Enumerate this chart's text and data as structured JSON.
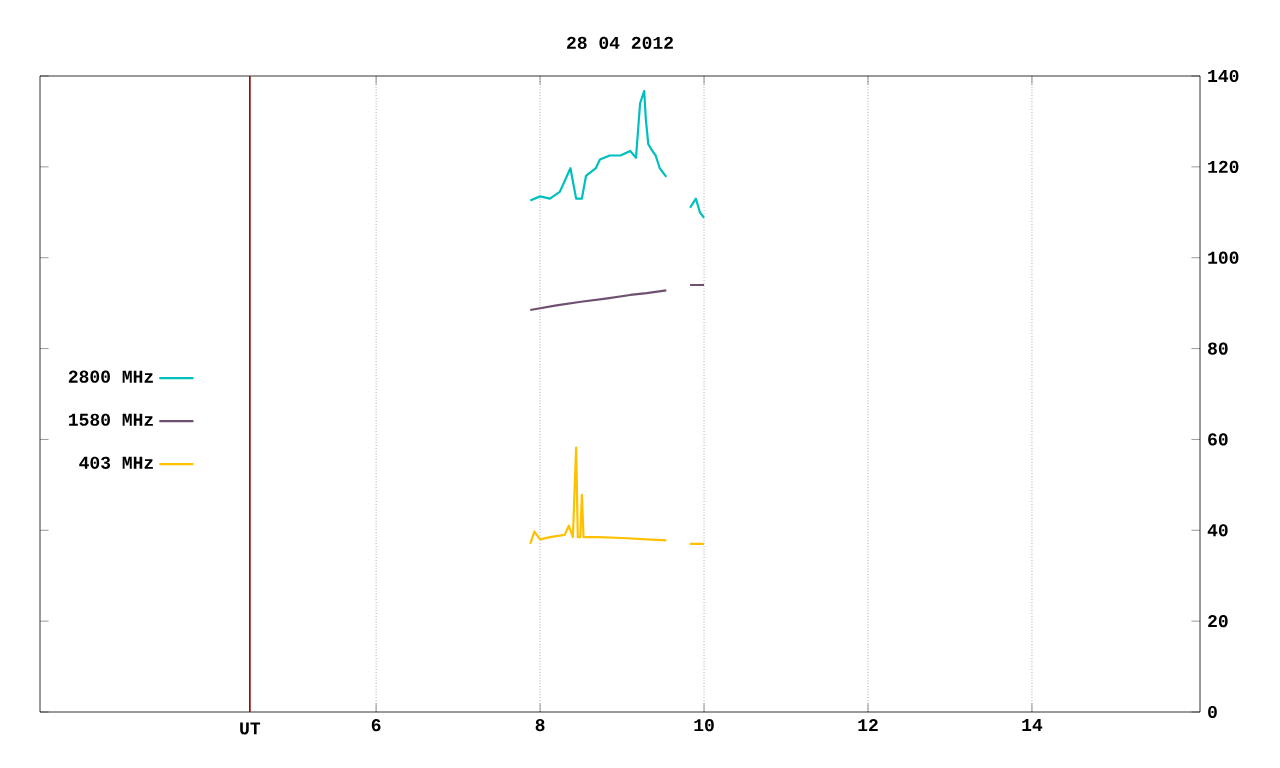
{
  "chart_data": {
    "type": "line",
    "title": "28 04 2012",
    "xlim": [
      1.9,
      16.05
    ],
    "xticks": [
      6,
      8,
      10,
      12,
      14
    ],
    "ylim": [
      0,
      140
    ],
    "yticks": [
      0,
      20,
      40,
      60,
      80,
      100,
      120,
      140
    ],
    "grid": "x",
    "legend": "left",
    "ref_lines": [
      {
        "axis": "x",
        "value": 4.46,
        "label": "UT",
        "color": "#8b0000"
      }
    ],
    "series": [
      {
        "name": "2800 MHz",
        "color": "#00bfbf",
        "x": [
          7.88,
          8.0,
          8.12,
          8.24,
          8.37,
          8.44,
          8.51,
          8.56,
          8.68,
          8.73,
          8.85,
          8.98,
          9.1,
          9.17,
          9.22,
          9.27,
          9.29,
          9.32,
          9.37,
          9.41,
          9.46,
          9.54,
          9.7,
          9.83,
          9.9,
          9.95,
          10.0
        ],
        "values": [
          112.6,
          113.5,
          113,
          114.5,
          119.7,
          113,
          113,
          118,
          119.7,
          121.6,
          122.5,
          122.5,
          123.5,
          122,
          134,
          136.7,
          130.5,
          125,
          123.5,
          122.5,
          119.7,
          117.8,
          null,
          111,
          113,
          110,
          108.8
        ]
      },
      {
        "name": "1580 MHz",
        "color": "#705070",
        "x": [
          7.88,
          8.2,
          8.5,
          8.8,
          9.1,
          9.3,
          9.54,
          9.7,
          9.83,
          10.0
        ],
        "values": [
          88.5,
          89.5,
          90.3,
          91,
          91.8,
          92.2,
          92.8,
          null,
          94,
          94
        ]
      },
      {
        "name": "403 MHz",
        "color": "#ffc000",
        "x": [
          7.88,
          7.93,
          8.0,
          8.12,
          8.3,
          8.35,
          8.4,
          8.44,
          8.46,
          8.49,
          8.51,
          8.53,
          8.7,
          9.0,
          9.3,
          9.54,
          9.7,
          9.83,
          10.0
        ],
        "values": [
          37,
          39.7,
          38,
          38.5,
          39,
          41,
          38.5,
          58.2,
          38.5,
          38.5,
          47.8,
          38.5,
          38.5,
          38.3,
          38,
          37.8,
          null,
          37,
          37
        ]
      }
    ]
  }
}
